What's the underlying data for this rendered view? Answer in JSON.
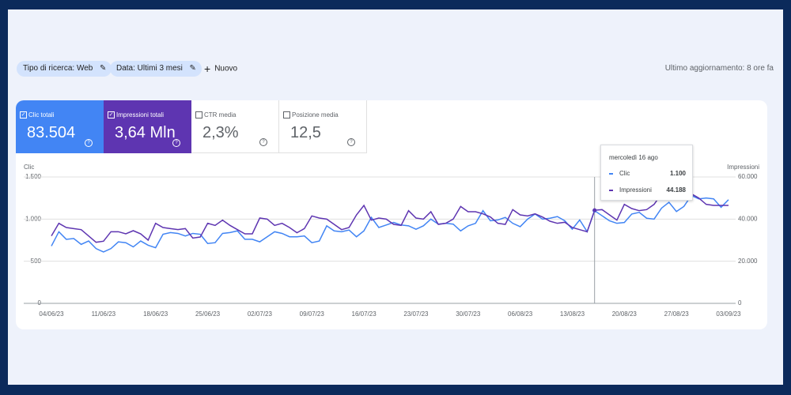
{
  "filters": [
    "Tipo di ricerca: Web",
    "Data: Ultimi 3 mesi"
  ],
  "new_button": "Nuovo",
  "last_update": "Ultimo aggiornamento: 8 ore fa",
  "metrics": [
    {
      "label": "Clic totali",
      "value": "83.504",
      "checked": true,
      "color": "#4285f4"
    },
    {
      "label": "Impressioni totali",
      "value": "3,64 Mln",
      "checked": true,
      "color": "#5e35b1"
    },
    {
      "label": "CTR media",
      "value": "2,3%",
      "checked": false
    },
    {
      "label": "Posizione media",
      "value": "12,5",
      "checked": false
    }
  ],
  "chart_data": {
    "type": "line",
    "ylabel": "Clic",
    "y2label": "Impressioni",
    "categories": [
      "04/06/23",
      null,
      null,
      null,
      null,
      null,
      null,
      "11/06/23",
      null,
      null,
      null,
      null,
      null,
      null,
      "18/06/23",
      null,
      null,
      null,
      null,
      null,
      null,
      "25/06/23",
      null,
      null,
      null,
      null,
      null,
      null,
      "02/07/23",
      null,
      null,
      null,
      null,
      null,
      null,
      "09/07/23",
      null,
      null,
      null,
      null,
      null,
      null,
      "16/07/23",
      null,
      null,
      null,
      null,
      null,
      null,
      "23/07/23",
      null,
      null,
      null,
      null,
      null,
      null,
      "30/07/23",
      null,
      null,
      null,
      null,
      null,
      null,
      "06/08/23",
      null,
      null,
      null,
      null,
      null,
      null,
      "13/08/23",
      null,
      null,
      null,
      null,
      null,
      null,
      "20/08/23",
      null,
      null,
      null,
      null,
      null,
      null,
      "27/08/23",
      null,
      null,
      null,
      null,
      null,
      null,
      "03/09/23"
    ],
    "series": [
      {
        "name": "Clic",
        "color": "#4285f4",
        "values": [
          680,
          850,
          760,
          770,
          700,
          740,
          650,
          610,
          650,
          730,
          720,
          670,
          740,
          690,
          660,
          820,
          840,
          830,
          800,
          830,
          820,
          710,
          720,
          830,
          840,
          860,
          760,
          760,
          730,
          790,
          850,
          830,
          790,
          790,
          800,
          720,
          740,
          920,
          860,
          850,
          870,
          790,
          860,
          1020,
          900,
          930,
          960,
          930,
          920,
          880,
          920,
          1000,
          940,
          950,
          940,
          860,
          920,
          950,
          1100,
          980,
          990,
          1020,
          950,
          910,
          1000,
          1060,
          1000,
          1010,
          1030,
          980,
          880,
          990,
          850,
          1100,
          1040,
          980,
          950,
          960,
          1060,
          1080,
          1010,
          1000,
          1130,
          1200,
          1090,
          1150,
          1280,
          1240,
          1250,
          1240,
          1140,
          1230
        ]
      },
      {
        "name": "Impressioni",
        "color": "#5e35b1",
        "axis": "y2",
        "values": [
          32000,
          38000,
          36000,
          35500,
          35000,
          32000,
          29000,
          29500,
          34000,
          34000,
          33000,
          34500,
          33000,
          30000,
          38000,
          36000,
          35500,
          35000,
          35500,
          31000,
          31500,
          38000,
          37000,
          39500,
          37000,
          35000,
          33000,
          33000,
          40500,
          40000,
          37000,
          38000,
          36000,
          33500,
          35500,
          41500,
          40500,
          40000,
          37500,
          35000,
          36000,
          42000,
          46500,
          39500,
          40500,
          40000,
          37500,
          37000,
          44000,
          40500,
          40000,
          43500,
          37500,
          38000,
          40000,
          46000,
          43500,
          43500,
          42500,
          41000,
          38000,
          37500,
          44500,
          42000,
          41500,
          42500,
          41000,
          39000,
          38000,
          38500,
          36000,
          35000,
          34000,
          44188,
          44500,
          42000,
          39500,
          47000,
          45000,
          44000,
          44500,
          47000,
          52000,
          54000,
          54000,
          54500,
          52000,
          50000,
          47000,
          46500,
          46500,
          46500
        ]
      }
    ],
    "ylim": [
      0,
      1500
    ],
    "yticks": [
      0,
      500,
      {
        "value": 1000,
        "label": "1.000"
      },
      {
        "value": 1500,
        "label": "1.500"
      }
    ],
    "y2lim": [
      0,
      60000
    ],
    "y2ticks": [
      0,
      {
        "value": 20000,
        "label": "20.000"
      },
      {
        "value": 40000,
        "label": "40.000"
      },
      {
        "value": 60000,
        "label": "60.000"
      }
    ],
    "grid": true,
    "tooltip": {
      "title": "mercoledì 16 ago",
      "values": [
        "1.100",
        "44.188"
      ]
    }
  }
}
